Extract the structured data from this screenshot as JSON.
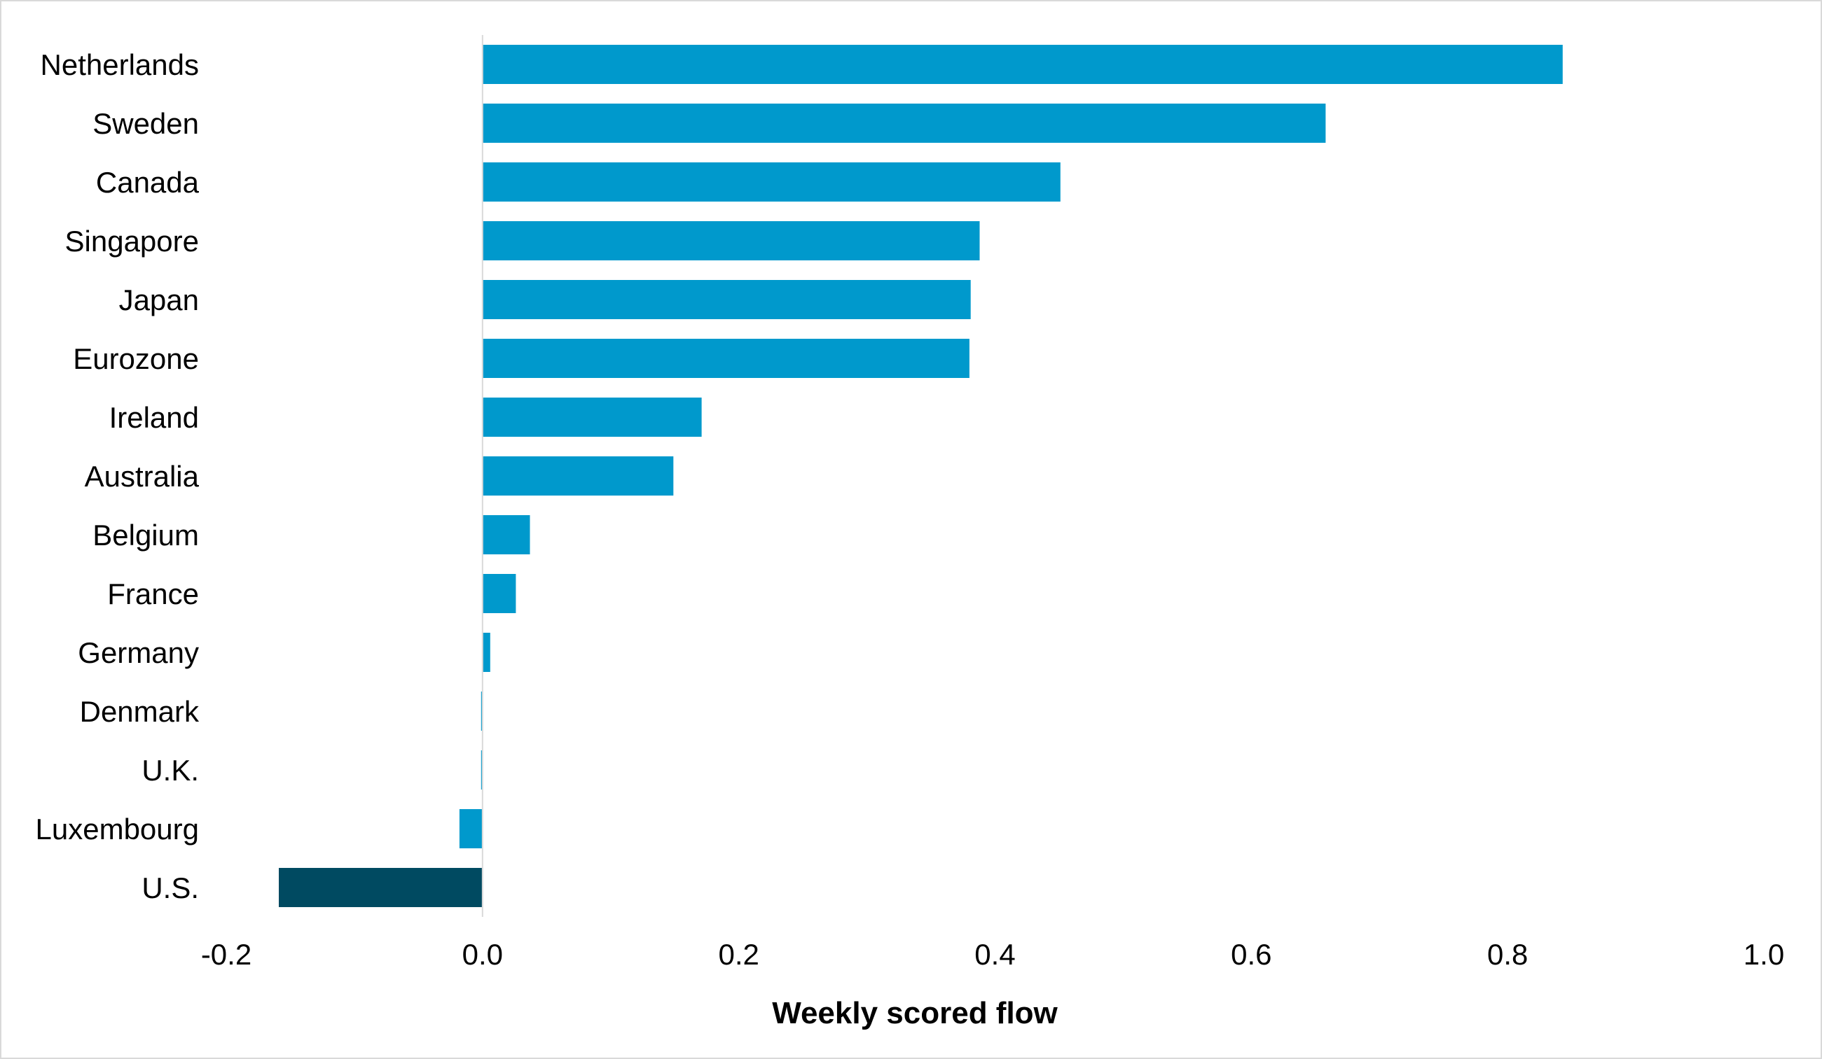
{
  "chart_data": {
    "type": "bar",
    "orientation": "horizontal",
    "title": "",
    "xlabel": "Weekly scored flow",
    "ylabel": "",
    "xlim": [
      -0.2,
      1.0
    ],
    "xticks": [
      -0.2,
      0.0,
      0.2,
      0.4,
      0.6,
      0.8,
      1.0
    ],
    "xtick_labels": [
      "-0.2",
      "0.0",
      "0.2",
      "0.4",
      "0.6",
      "0.8",
      "1.0"
    ],
    "grid": false,
    "legend": "none",
    "categories": [
      "Netherlands",
      "Sweden",
      "Canada",
      "Singapore",
      "Japan",
      "Eurozone",
      "Ireland",
      "Australia",
      "Belgium",
      "France",
      "Germany",
      "Denmark",
      "U.K.",
      "Luxembourg",
      "U.S."
    ],
    "values": [
      0.843,
      0.658,
      0.451,
      0.388,
      0.381,
      0.38,
      0.171,
      0.149,
      0.037,
      0.026,
      0.006,
      -0.001,
      -0.001,
      -0.018,
      -0.159
    ],
    "colors": {
      "default": "#0099CC",
      "highlight": "#004A61",
      "highlight_category": "U.S.",
      "zero_line": "#d9d9d9",
      "frame": "#d9d9d9"
    }
  }
}
